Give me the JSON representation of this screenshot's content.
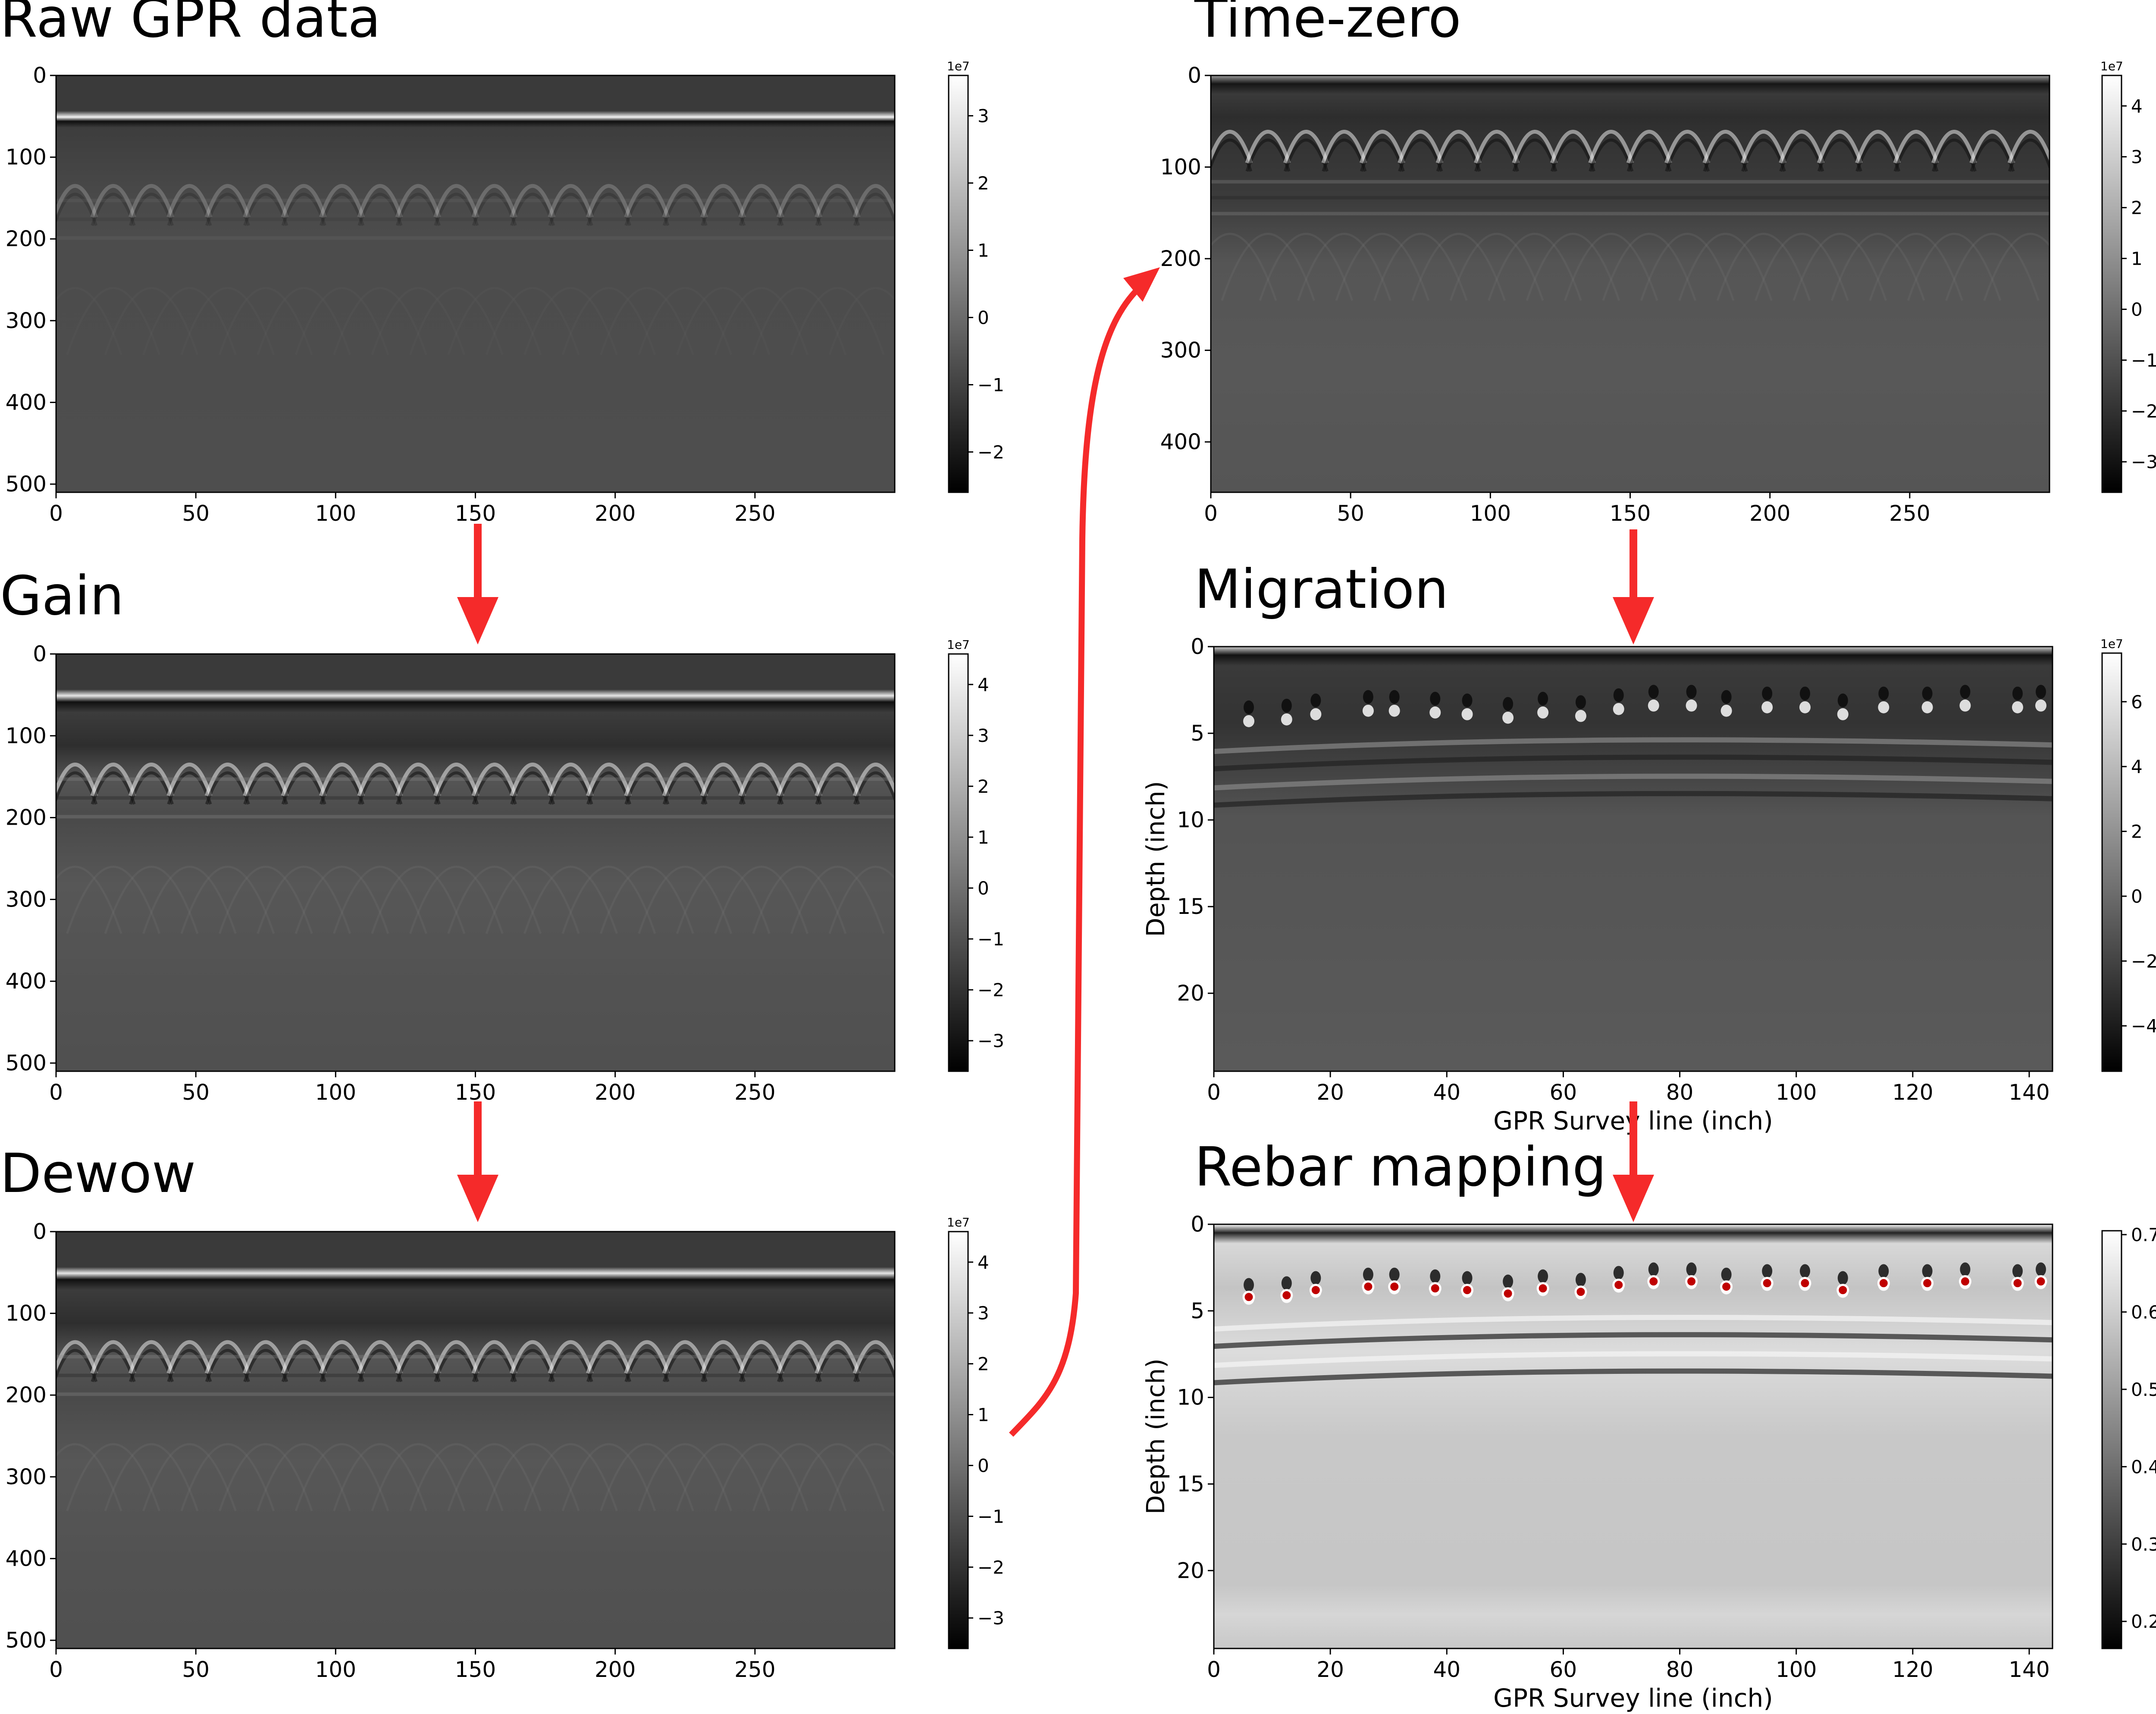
{
  "panels": [
    {
      "id": "raw",
      "title": "Raw GPR data",
      "xticks": [
        "0",
        "50",
        "100",
        "150",
        "200",
        "250"
      ],
      "yticks": [
        "0",
        "100",
        "200",
        "300",
        "400",
        "500"
      ],
      "xlabel": "",
      "ylabel": "",
      "colorbar": {
        "exponent": "1e7",
        "ticks": [
          "3",
          "2",
          "1",
          "0",
          "−1",
          "−2"
        ]
      },
      "image": "raw"
    },
    {
      "id": "gain",
      "title": "Gain",
      "xticks": [
        "0",
        "50",
        "100",
        "150",
        "200",
        "250"
      ],
      "yticks": [
        "0",
        "100",
        "200",
        "300",
        "400",
        "500"
      ],
      "xlabel": "",
      "ylabel": "",
      "colorbar": {
        "exponent": "1e7",
        "ticks": [
          "4",
          "3",
          "2",
          "1",
          "0",
          "−1",
          "−2",
          "−3"
        ]
      },
      "image": "processed"
    },
    {
      "id": "dewow",
      "title": "Dewow",
      "xticks": [
        "0",
        "50",
        "100",
        "150",
        "200",
        "250"
      ],
      "yticks": [
        "0",
        "100",
        "200",
        "300",
        "400",
        "500"
      ],
      "xlabel": "",
      "ylabel": "",
      "colorbar": {
        "exponent": "1e7",
        "ticks": [
          "4",
          "3",
          "2",
          "1",
          "0",
          "−1",
          "−2",
          "−3"
        ]
      },
      "image": "processed"
    },
    {
      "id": "timezero",
      "title": "Time-zero",
      "xticks": [
        "0",
        "50",
        "100",
        "150",
        "200",
        "250"
      ],
      "yticks": [
        "0",
        "100",
        "200",
        "300",
        "400"
      ],
      "xlabel": "",
      "ylabel": "",
      "colorbar": {
        "exponent": "1e7",
        "ticks": [
          "4",
          "3",
          "2",
          "1",
          "0",
          "−1",
          "−2",
          "−3"
        ]
      },
      "image": "timezero"
    },
    {
      "id": "migration",
      "title": "Migration",
      "xticks": [
        "0",
        "20",
        "40",
        "60",
        "80",
        "100",
        "120",
        "140"
      ],
      "yticks": [
        "0",
        "5",
        "10",
        "15",
        "20"
      ],
      "xlabel": "GPR Survey line (inch)",
      "ylabel": "Depth (inch)",
      "colorbar": {
        "exponent": "1e7",
        "ticks": [
          "6",
          "4",
          "2",
          "0",
          "−2",
          "−4"
        ]
      },
      "image": "migration"
    },
    {
      "id": "rebar",
      "title": "Rebar mapping",
      "xticks": [
        "0",
        "20",
        "40",
        "60",
        "80",
        "100",
        "120",
        "140"
      ],
      "yticks": [
        "0",
        "5",
        "10",
        "15",
        "20"
      ],
      "xlabel": "GPR Survey line (inch)",
      "ylabel": "Depth (inch)",
      "colorbar": {
        "exponent": "",
        "ticks": [
          "0.7",
          "0.6",
          "0.5",
          "0.4",
          "0.3",
          "0.2"
        ]
      },
      "image": "rebar"
    }
  ],
  "flow_arrow_color": "#f52a2a",
  "rebar_marker_color": "#c00000",
  "rebar_positions_inch": [
    {
      "x": 6,
      "d": 4.2
    },
    {
      "x": 12.5,
      "d": 4.1
    },
    {
      "x": 17.5,
      "d": 3.8
    },
    {
      "x": 26.5,
      "d": 3.6
    },
    {
      "x": 31,
      "d": 3.6
    },
    {
      "x": 38,
      "d": 3.7
    },
    {
      "x": 43.5,
      "d": 3.8
    },
    {
      "x": 50.5,
      "d": 4.0
    },
    {
      "x": 56.5,
      "d": 3.7
    },
    {
      "x": 63,
      "d": 3.9
    },
    {
      "x": 69.5,
      "d": 3.5
    },
    {
      "x": 75.5,
      "d": 3.3
    },
    {
      "x": 82,
      "d": 3.3
    },
    {
      "x": 88,
      "d": 3.6
    },
    {
      "x": 95,
      "d": 3.4
    },
    {
      "x": 101.5,
      "d": 3.4
    },
    {
      "x": 108,
      "d": 3.8
    },
    {
      "x": 115,
      "d": 3.4
    },
    {
      "x": 122.5,
      "d": 3.4
    },
    {
      "x": 129,
      "d": 3.3
    },
    {
      "x": 138,
      "d": 3.4
    },
    {
      "x": 142,
      "d": 3.3
    }
  ]
}
